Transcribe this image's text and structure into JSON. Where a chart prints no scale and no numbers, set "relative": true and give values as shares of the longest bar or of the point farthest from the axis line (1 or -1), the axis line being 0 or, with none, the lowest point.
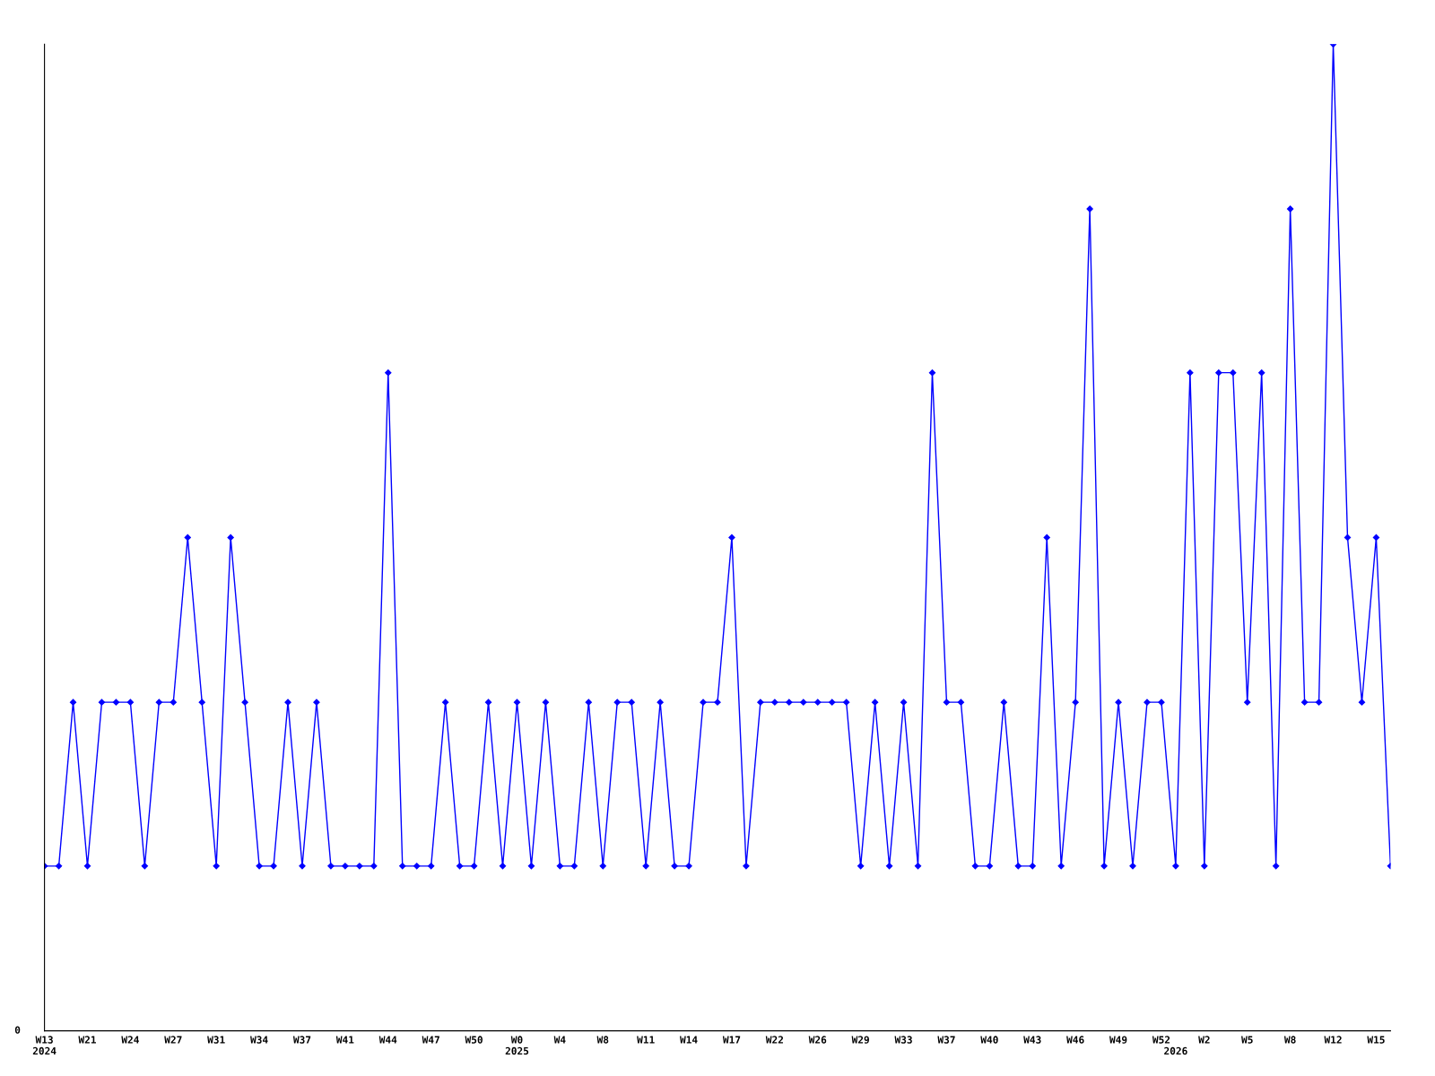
{
  "chart_data": {
    "type": "line",
    "relative": true,
    "color": "#0000ff",
    "marker": "diamond",
    "line_style": "solid",
    "grid": false,
    "legend": false,
    "categories": [
      "W13\n2024",
      null,
      null,
      "W21",
      null,
      null,
      "W24",
      null,
      null,
      "W27",
      null,
      null,
      "W31",
      null,
      null,
      "W34",
      null,
      null,
      "W37",
      null,
      null,
      "W41",
      null,
      null,
      "W44",
      null,
      null,
      "W47",
      null,
      null,
      "W50",
      null,
      null,
      "W0\n2025",
      null,
      null,
      "W4",
      null,
      null,
      "W8",
      null,
      null,
      "W11",
      null,
      null,
      "W14",
      null,
      null,
      "W17",
      null,
      null,
      "W22",
      null,
      null,
      "W26",
      null,
      null,
      "W29",
      null,
      null,
      "W33",
      null,
      null,
      "W37",
      null,
      null,
      "W40",
      null,
      null,
      "W43",
      null,
      null,
      "W46",
      null,
      null,
      "W49",
      null,
      null,
      "W52",
      "\n2026",
      null,
      "W2",
      null,
      null,
      "W5",
      null,
      null,
      "W8",
      null,
      null,
      "W12",
      null,
      null,
      "W15",
      null
    ],
    "values": [
      0.167,
      0.167,
      0.333,
      0.167,
      0.333,
      0.333,
      0.333,
      0.167,
      0.333,
      0.333,
      0.5,
      0.333,
      0.167,
      0.5,
      0.333,
      0.167,
      0.167,
      0.333,
      0.167,
      0.333,
      0.167,
      0.167,
      0.167,
      0.167,
      0.667,
      0.167,
      0.167,
      0.167,
      0.333,
      0.167,
      0.167,
      0.333,
      0.167,
      0.333,
      0.167,
      0.333,
      0.167,
      0.167,
      0.333,
      0.167,
      0.333,
      0.333,
      0.167,
      0.333,
      0.167,
      0.167,
      0.333,
      0.333,
      0.5,
      0.167,
      0.333,
      0.333,
      0.333,
      0.333,
      0.333,
      0.333,
      0.333,
      0.167,
      0.333,
      0.167,
      0.333,
      0.167,
      0.667,
      0.333,
      0.333,
      0.167,
      0.167,
      0.333,
      0.167,
      0.167,
      0.5,
      0.167,
      0.333,
      0.833,
      0.167,
      0.333,
      0.167,
      0.333,
      0.333,
      0.167,
      0.667,
      0.167,
      0.667,
      0.667,
      0.333,
      0.667,
      0.167,
      0.833,
      0.333,
      0.333,
      1,
      0.5,
      0.333,
      0.5,
      0.167
    ],
    "annotations": [
      "0"
    ]
  }
}
